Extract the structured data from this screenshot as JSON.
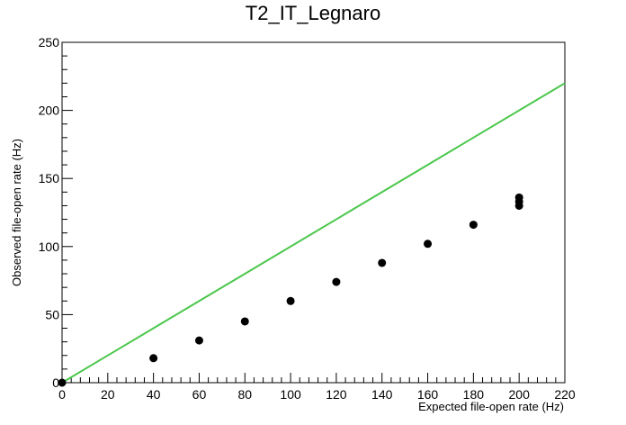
{
  "chart_data": {
    "type": "scatter",
    "title": "T2_IT_Legnaro",
    "xlabel": "Expected file-open rate (Hz)",
    "ylabel": "Observed file-open rate (Hz)",
    "xlim": [
      0,
      220
    ],
    "ylim": [
      0,
      250
    ],
    "x_ticks": [
      "0",
      "20",
      "40",
      "60",
      "80",
      "100",
      "120",
      "140",
      "160",
      "180",
      "200",
      "220"
    ],
    "y_ticks": [
      "0",
      "50",
      "100",
      "150",
      "200",
      "250"
    ],
    "grid": false,
    "series": [
      {
        "type": "scatter",
        "marker_color": "#000000",
        "points": [
          [
            0,
            0
          ],
          [
            40,
            18
          ],
          [
            60,
            31
          ],
          [
            80,
            45
          ],
          [
            100,
            60
          ],
          [
            120,
            74
          ],
          [
            140,
            88
          ],
          [
            160,
            102
          ],
          [
            180,
            116
          ],
          [
            200,
            130
          ],
          [
            200,
            133
          ],
          [
            200,
            136
          ]
        ]
      },
      {
        "type": "line",
        "color": "#4cc74c",
        "points": [
          [
            0,
            0
          ],
          [
            220,
            220
          ]
        ]
      }
    ]
  }
}
